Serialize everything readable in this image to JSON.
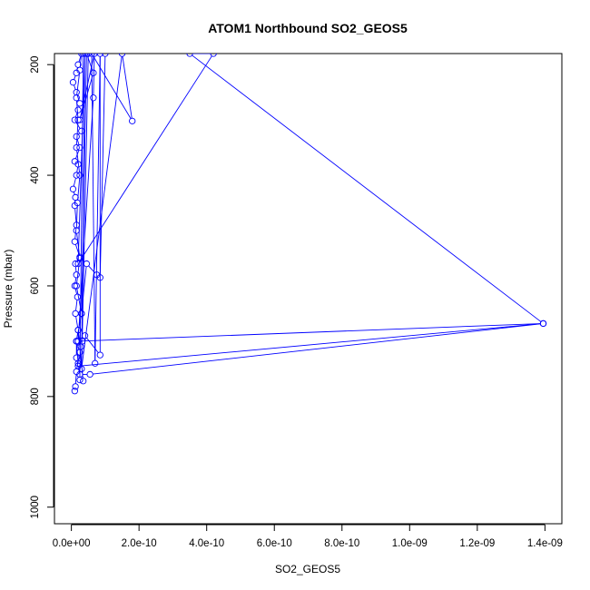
{
  "chart_data": {
    "type": "line",
    "title": "ATOM1 Northbound SO2_GEOS5",
    "xlabel": "SO2_GEOS5",
    "ylabel": "Pressure (mbar)",
    "xlim": [
      -5e-11,
      1.45e-09
    ],
    "ylim": [
      1030,
      180
    ],
    "y_reversed": true,
    "grid": false,
    "legend": "none",
    "x_ticks": [
      {
        "value": 0,
        "label": "0.0e+00"
      },
      {
        "value": 2e-10,
        "label": "2.0e-10"
      },
      {
        "value": 4e-10,
        "label": "4.0e-10"
      },
      {
        "value": 6e-10,
        "label": "6.0e-10"
      },
      {
        "value": 8e-10,
        "label": "8.0e-10"
      },
      {
        "value": 1e-09,
        "label": "1.0e-09"
      },
      {
        "value": 1.2e-09,
        "label": "1.2e-09"
      },
      {
        "value": 1.4e-09,
        "label": "1.4e-09"
      }
    ],
    "y_ticks": [
      {
        "value": 200,
        "label": "200"
      },
      {
        "value": 400,
        "label": "400"
      },
      {
        "value": 600,
        "label": "600"
      },
      {
        "value": 800,
        "label": "800"
      },
      {
        "value": 1000,
        "label": "1000"
      }
    ],
    "series": [
      {
        "color": "#0000ff",
        "marker": "open-circle",
        "points": [
          [
            1e-11,
            790
          ],
          [
            1.2e-11,
            782
          ],
          [
            1.5e-11,
            755
          ],
          [
            2.5e-11,
            720
          ],
          [
            1.5e-11,
            700
          ],
          [
            2e-11,
            680
          ],
          [
            1.2e-11,
            650
          ],
          [
            1.8e-11,
            620
          ],
          [
            1e-11,
            600
          ],
          [
            1.5e-11,
            580
          ],
          [
            1.2e-11,
            560
          ],
          [
            2.5e-11,
            548
          ],
          [
            1e-11,
            520
          ],
          [
            1.5e-11,
            490
          ],
          [
            1e-11,
            455
          ],
          [
            1.2e-11,
            440
          ],
          [
            5e-12,
            425
          ],
          [
            1.5e-11,
            400
          ],
          [
            2e-11,
            380
          ],
          [
            1e-11,
            375
          ],
          [
            2.5e-11,
            350
          ],
          [
            1.5e-11,
            330
          ],
          [
            3e-11,
            320
          ],
          [
            1e-11,
            300
          ],
          [
            2e-11,
            282
          ],
          [
            2.5e-11,
            270
          ],
          [
            1.5e-11,
            250
          ],
          [
            5e-12,
            232
          ],
          [
            1.5e-11,
            215
          ],
          [
            2e-11,
            200
          ],
          [
            3e-11,
            180
          ],
          [
            2.5e-11,
            210
          ],
          [
            1.5e-11,
            260
          ],
          [
            2e-11,
            300
          ],
          [
            1.5e-11,
            350
          ],
          [
            2.5e-11,
            400
          ],
          [
            1.8e-11,
            450
          ],
          [
            1.5e-11,
            500
          ],
          [
            2.5e-11,
            550
          ],
          [
            1.5e-11,
            600
          ],
          [
            3e-11,
            650
          ],
          [
            1.5e-11,
            700
          ],
          [
            2e-11,
            740
          ],
          [
            2.5e-11,
            760
          ],
          [
            5.5e-11,
            760
          ],
          [
            1.395e-09,
            668
          ],
          [
            2e-11,
            745
          ],
          [
            1.5e-11,
            730
          ],
          [
            1.5e-11,
            700
          ],
          [
            4e-11,
            690
          ],
          [
            8.5e-11,
            725
          ],
          [
            8.5e-11,
            180
          ],
          [
            7e-11,
            740
          ],
          [
            6e-11,
            180
          ],
          [
            1.8e-10,
            302
          ],
          [
            1.5e-10,
            180
          ],
          [
            3e-11,
            750
          ],
          [
            4e-11,
            180
          ],
          [
            2e-11,
            560
          ],
          [
            4.2e-10,
            180
          ],
          [
            3.5e-10,
            180
          ],
          [
            1.395e-09,
            668
          ],
          [
            2e-11,
            700
          ],
          [
            6.5e-11,
            260
          ],
          [
            6.8e-11,
            180
          ],
          [
            2.5e-11,
            300
          ],
          [
            6.5e-11,
            215
          ],
          [
            4.5e-11,
            180
          ],
          [
            3e-11,
            650
          ],
          [
            4.5e-11,
            560
          ],
          [
            7.5e-11,
            580
          ],
          [
            8.5e-11,
            585
          ],
          [
            1e-10,
            180
          ],
          [
            3.5e-11,
            180
          ],
          [
            2.5e-11,
            770
          ],
          [
            3.5e-11,
            772
          ],
          [
            2e-11,
            680
          ],
          [
            2.8e-11,
            710
          ],
          [
            3.2e-11,
            700
          ],
          [
            5e-11,
            180
          ]
        ]
      }
    ]
  }
}
